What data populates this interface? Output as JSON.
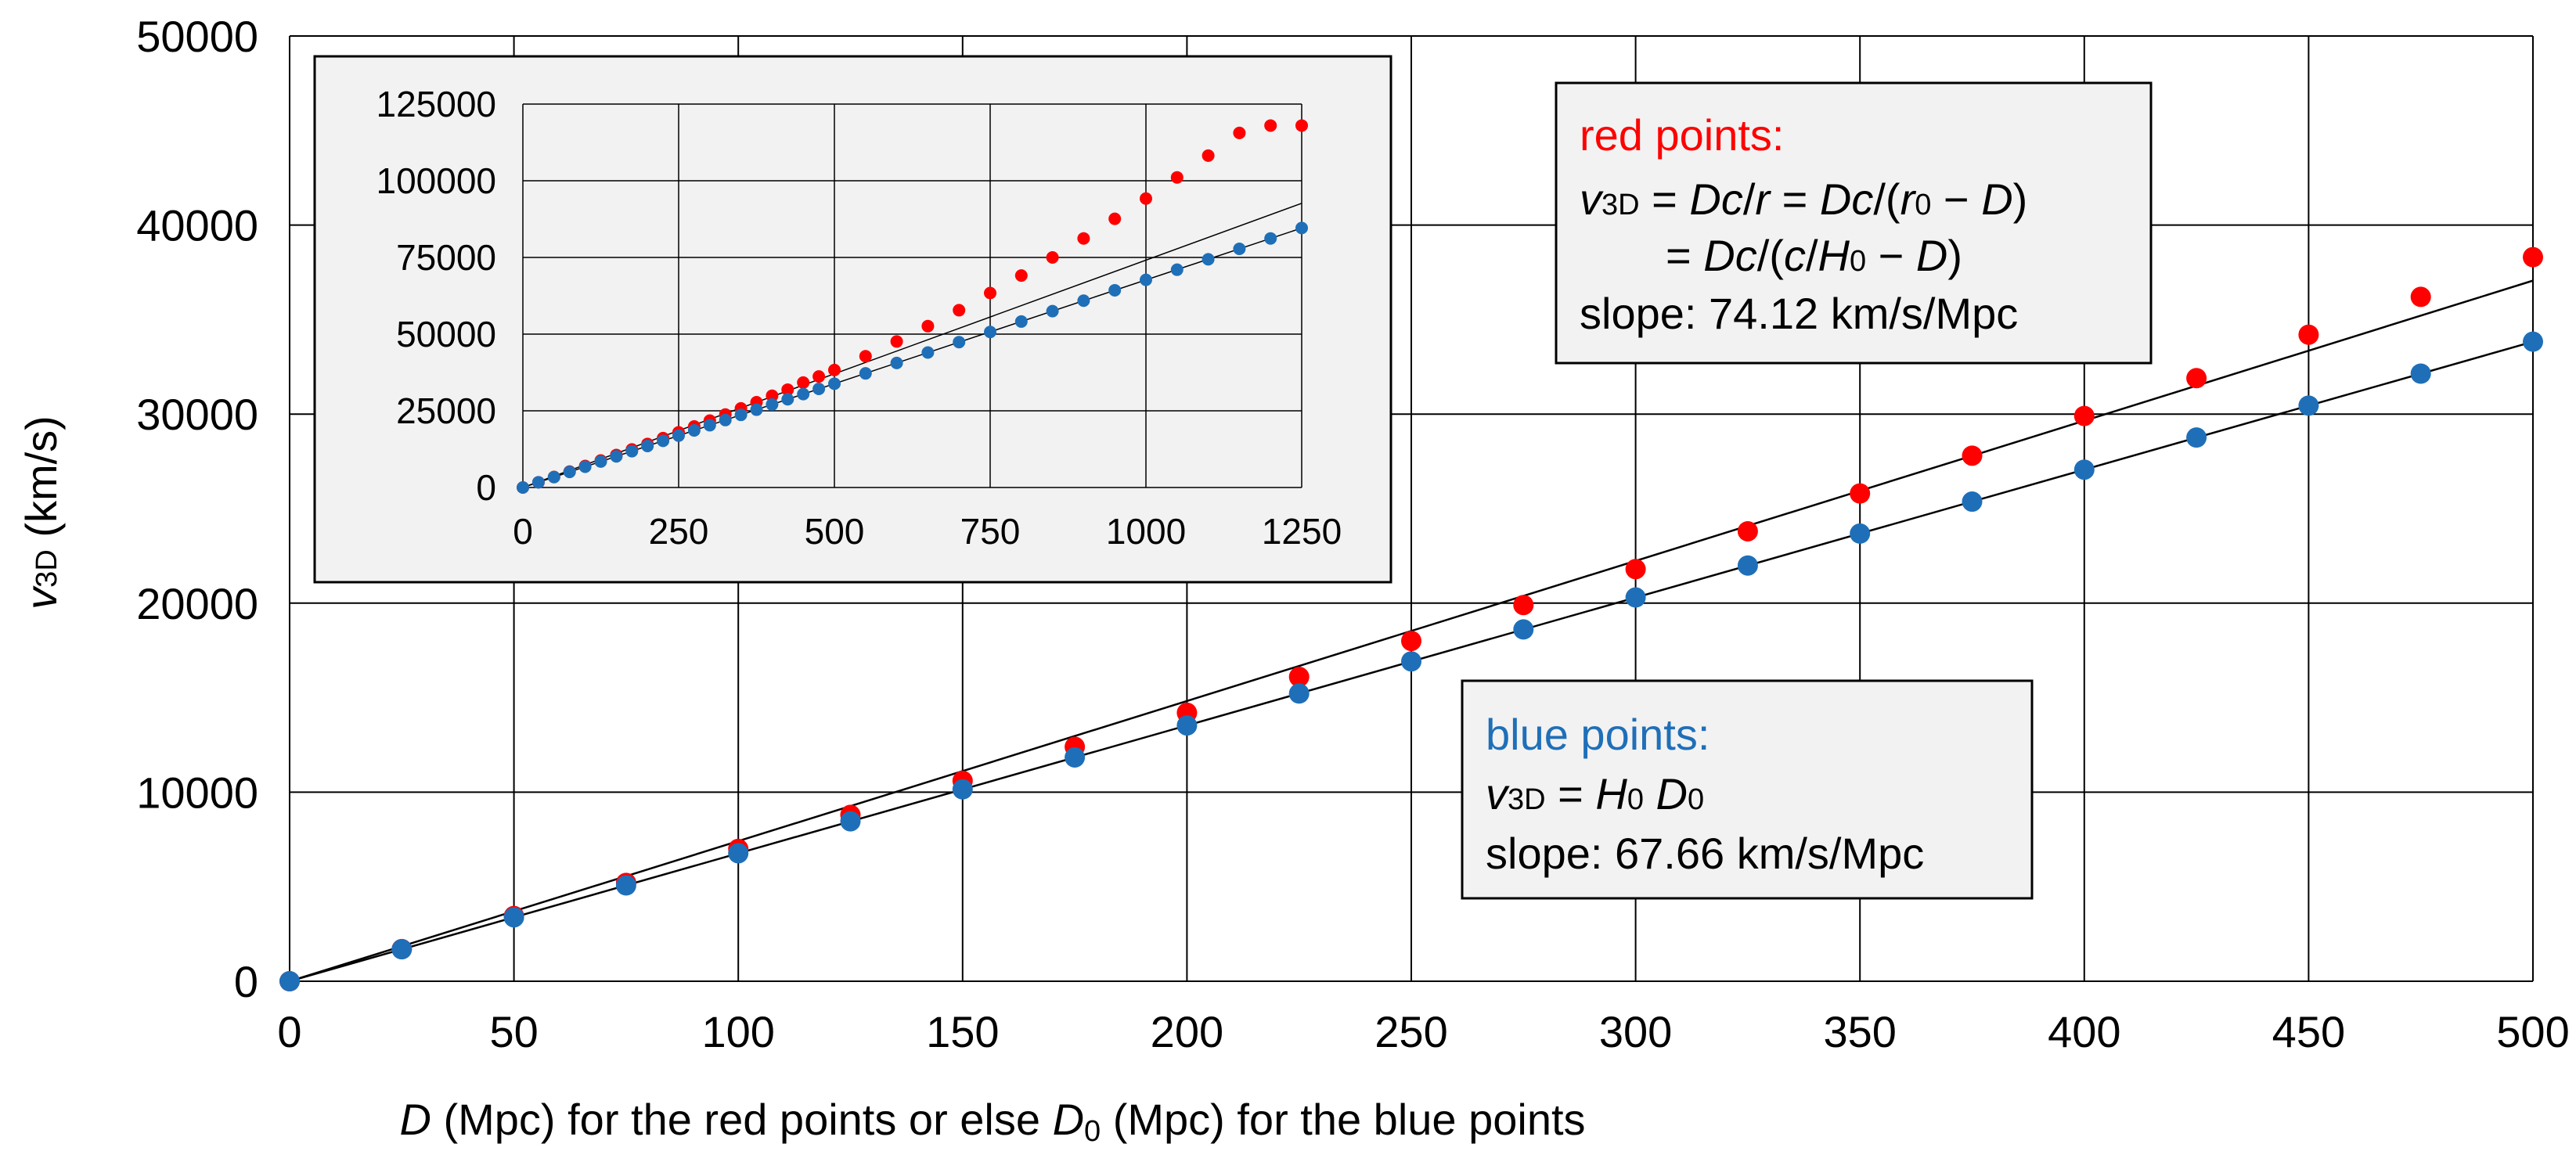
{
  "chart_data": [
    {
      "type": "scatter",
      "xlabel": {
        "pre": "D",
        "mid": " (Mpc) for the red points or else ",
        "d0": "D",
        "d0sub": "0",
        "post": " (Mpc) for the blue points"
      },
      "ylabel": {
        "v": "v",
        "sub": "3D",
        "rest": " (km/s)"
      },
      "xlim": [
        0,
        500
      ],
      "ylim": [
        0,
        50000
      ],
      "xticks": [
        0,
        50,
        100,
        150,
        200,
        250,
        300,
        350,
        400,
        450,
        500
      ],
      "yticks": [
        0,
        10000,
        20000,
        30000,
        40000,
        50000
      ],
      "grid": true,
      "series": [
        {
          "color": "#ff0000",
          "x": [
            0,
            25,
            50,
            75,
            100,
            125,
            150,
            175,
            200,
            225,
            250,
            275,
            300,
            325,
            350,
            375,
            400,
            425,
            450,
            475,
            500
          ],
          "y": [
            0,
            1700,
            3450,
            5200,
            7000,
            8800,
            10600,
            12400,
            14200,
            16100,
            18000,
            19900,
            21800,
            23800,
            25800,
            27800,
            29900,
            31900,
            34200,
            36200,
            38300
          ]
        },
        {
          "color": "#1f6fb8",
          "x": [
            0,
            25,
            50,
            75,
            100,
            125,
            150,
            175,
            200,
            225,
            250,
            275,
            300,
            325,
            350,
            375,
            400,
            425,
            450,
            475,
            500
          ],
          "y": [
            0,
            1690,
            3380,
            5070,
            6770,
            8460,
            10150,
            11840,
            13530,
            15220,
            16920,
            18610,
            20300,
            21990,
            23680,
            25370,
            27060,
            28760,
            30450,
            32140,
            33830
          ]
        }
      ],
      "fit_lines": [
        {
          "slope": 74.12,
          "x": [
            0,
            500
          ]
        },
        {
          "slope": 67.66,
          "x": [
            0,
            500
          ]
        }
      ]
    },
    {
      "type": "scatter",
      "xlim": [
        0,
        1250
      ],
      "ylim": [
        0,
        125000
      ],
      "xticks": [
        0,
        250,
        500,
        750,
        1000,
        1250
      ],
      "yticks": [
        0,
        25000,
        50000,
        75000,
        100000,
        125000
      ],
      "grid": true,
      "series": [
        {
          "color": "#ff0000",
          "x": [
            0,
            25,
            50,
            75,
            100,
            125,
            150,
            175,
            200,
            225,
            250,
            275,
            300,
            325,
            350,
            375,
            400,
            425,
            450,
            475,
            500,
            550,
            600,
            650,
            700,
            750,
            800,
            850,
            900,
            950,
            1000,
            1050,
            1100,
            1150,
            1200,
            1250
          ],
          "y": [
            0,
            1700,
            3450,
            5200,
            7000,
            8800,
            10600,
            12400,
            14200,
            16100,
            18000,
            19900,
            21800,
            23800,
            25800,
            27800,
            29900,
            31900,
            34200,
            36200,
            38300,
            42800,
            47600,
            52600,
            57800,
            63400,
            69100,
            75000,
            81200,
            87600,
            94200,
            101100,
            108200,
            115600,
            118000,
            118000
          ]
        },
        {
          "color": "#1f6fb8",
          "x": [
            0,
            25,
            50,
            75,
            100,
            125,
            150,
            175,
            200,
            225,
            250,
            275,
            300,
            325,
            350,
            375,
            400,
            425,
            450,
            475,
            500,
            550,
            600,
            650,
            700,
            750,
            800,
            850,
            900,
            950,
            1000,
            1050,
            1100,
            1150,
            1200,
            1250
          ],
          "y": [
            0,
            1690,
            3380,
            5070,
            6770,
            8460,
            10150,
            11840,
            13530,
            15220,
            16920,
            18610,
            20300,
            21990,
            23680,
            25370,
            27060,
            28760,
            30450,
            32140,
            33830,
            37200,
            40600,
            44000,
            47400,
            50700,
            54100,
            57500,
            60900,
            64300,
            67700,
            71000,
            74400,
            77800,
            81200,
            84600
          ]
        }
      ],
      "fit_lines": [
        {
          "slope": 74.12,
          "x": [
            0,
            1250
          ]
        },
        {
          "slope": 67.66,
          "x": [
            0,
            1250
          ]
        }
      ]
    }
  ],
  "annotations": {
    "red": {
      "heading": "red points:",
      "color": "#ff0000",
      "line1": {
        "v": "v",
        "sub": "3D",
        "eq1": " = ",
        "Dc": "Dc",
        "slash1": "/",
        "r": "r",
        "eq2": " = ",
        "Dc2": "Dc",
        "open": "/(",
        "r0": "r",
        "r0sub": "0",
        "minus": " − ",
        "D": "D",
        "close": ")"
      },
      "line2": {
        "eq": "= ",
        "Dc": "Dc",
        "open": "/(",
        "c": "c",
        "slash": "/",
        "H": "H",
        "Hsub": "0",
        "minus": " − ",
        "D": "D",
        "close": ")"
      },
      "slope": "slope:  74.12 km/s/Mpc"
    },
    "blue": {
      "heading": "blue points:",
      "color": "#1f6fb8",
      "line1": {
        "v": "v",
        "sub": "3D",
        "eq": " = ",
        "H": "H",
        "Hsub": "0",
        "D": " D",
        "Dsub": "0"
      },
      "slope": "slope:  67.66 km/s/Mpc"
    }
  }
}
